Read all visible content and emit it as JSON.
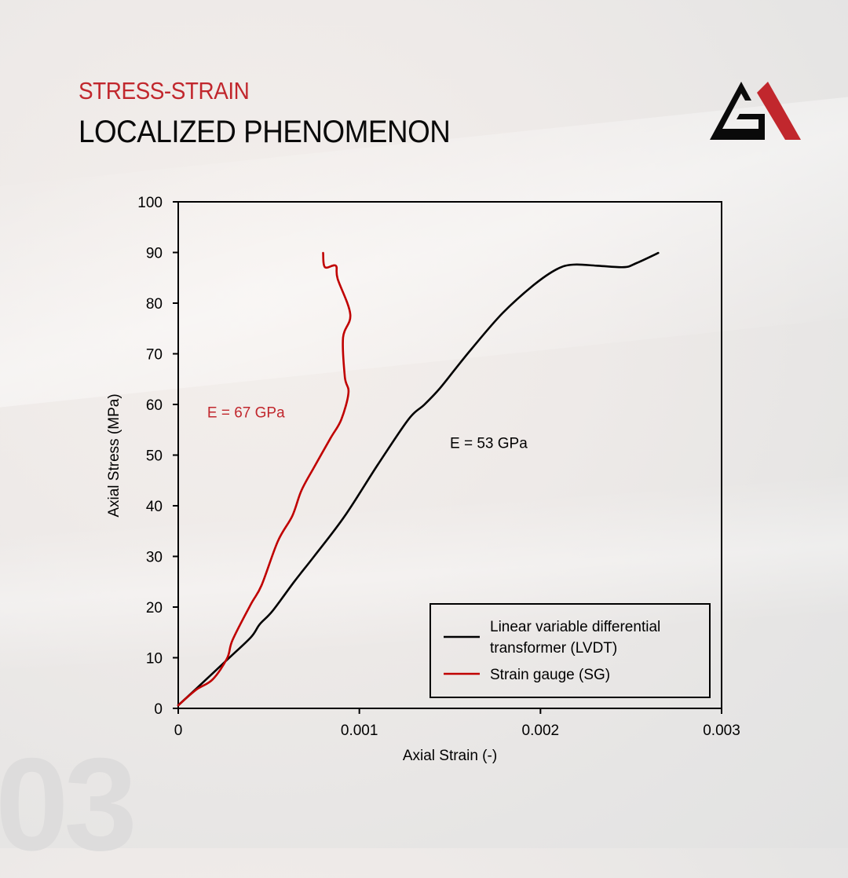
{
  "header": {
    "kicker": "STRESS-STRAIN",
    "title": "LOCALIZED PHENOMENON",
    "logo": "ga-triangle-logo"
  },
  "watermark": "03",
  "colors": {
    "accent_red": "#c1272d",
    "sg_line": "#c00000",
    "lvdt_line": "#000000",
    "text": "#0a0a0a"
  },
  "chart_data": {
    "type": "line",
    "title": "",
    "xlabel": "Axial Strain (-)",
    "ylabel": "Axial Stress (MPa)",
    "xlim": [
      0,
      0.003
    ],
    "ylim": [
      0,
      100
    ],
    "x_ticks": [
      "0",
      "0.001",
      "0.002",
      "0.003"
    ],
    "y_ticks": [
      "0",
      "10",
      "20",
      "30",
      "40",
      "50",
      "60",
      "70",
      "80",
      "90",
      "100"
    ],
    "grid": false,
    "legend_position": "lower right",
    "series": [
      {
        "name": "Linear variable differential transformer (LVDT)",
        "legend_lines": [
          "Linear variable differential",
          "transformer (LVDT)"
        ],
        "color": "#000000",
        "x": [
          0,
          0.0001,
          0.00027,
          0.0004,
          0.00045,
          0.00052,
          0.00064,
          0.00075,
          0.00092,
          0.0011,
          0.00127,
          0.00136,
          0.00144,
          0.00153,
          0.00162,
          0.00179,
          0.00196,
          0.00209,
          0.00218,
          0.00231,
          0.00246,
          0.00253,
          0.00265
        ],
        "y": [
          0.6,
          3.9,
          9.6,
          14.0,
          16.6,
          19.2,
          25.0,
          30.0,
          38.0,
          48.0,
          57.0,
          60.0,
          63.0,
          67.0,
          71.0,
          78.0,
          83.5,
          86.7,
          87.6,
          87.4,
          87.1,
          87.9,
          89.9
        ]
      },
      {
        "name": "Strain gauge (SG)",
        "legend_lines": [
          "Strain gauge (SG)"
        ],
        "color": "#c00000",
        "x": [
          0,
          0.0001,
          0.00019,
          0.00027,
          0.0003,
          0.0004,
          0.00046,
          0.00055,
          0.00063,
          0.00068,
          0.00075,
          0.00084,
          0.0009,
          0.00094,
          0.00092,
          0.00091,
          0.00095,
          0.00088,
          0.00087,
          0.00081,
          0.0008
        ],
        "y": [
          0.6,
          3.7,
          5.7,
          9.9,
          13.5,
          20.5,
          24.3,
          33.0,
          38.0,
          43.0,
          47.6,
          53.3,
          57.0,
          62.3,
          65.4,
          73.2,
          77.8,
          84.8,
          87.4,
          87.1,
          89.9
        ]
      }
    ],
    "annotations": [
      {
        "text": "E = 67 GPa",
        "color": "#c1272d",
        "x": 0.00016,
        "y": 58.5
      },
      {
        "text": "E = 53 GPa",
        "color": "#000000",
        "x": 0.0015,
        "y": 52.5
      }
    ]
  }
}
